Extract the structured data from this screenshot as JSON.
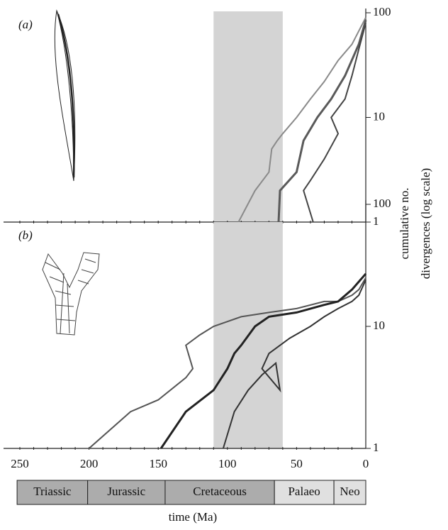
{
  "chart_data": [
    {
      "type": "line",
      "panel_label": "(a)",
      "log_y": true,
      "xlim": [
        250,
        0
      ],
      "ylim": [
        1,
        100
      ],
      "yticks": [
        1,
        10,
        100
      ],
      "xminorticks": [
        250,
        240,
        230,
        220,
        210,
        200,
        190,
        180,
        170,
        160,
        150,
        140,
        130,
        120,
        110,
        100,
        90,
        80,
        70,
        60,
        50,
        40,
        30,
        20,
        10
      ],
      "shade": [
        110,
        60
      ],
      "shade_color": "#d4d4d4",
      "ylabel": [
        "cumulative no.",
        "divergences (log scale)"
      ],
      "series": [
        {
          "color": "#8a8a8a",
          "x": [
            92,
            80,
            70,
            68,
            64,
            60,
            50,
            40,
            30,
            20,
            10,
            0
          ],
          "values": [
            1,
            2,
            3,
            5,
            6,
            7,
            10,
            15,
            22,
            35,
            50,
            90
          ]
        },
        {
          "color": "#5a5a5a",
          "x": [
            63,
            62,
            50,
            45,
            35,
            25,
            15,
            5,
            0
          ],
          "values": [
            1,
            2,
            3,
            6,
            10,
            15,
            25,
            50,
            85
          ]
        },
        {
          "color": "#444444",
          "x": [
            38,
            45,
            40,
            30,
            20,
            25,
            15,
            10,
            5,
            0
          ],
          "values": [
            1,
            2,
            2.5,
            4,
            7,
            10,
            15,
            25,
            45,
            80
          ]
        }
      ]
    },
    {
      "type": "line",
      "panel_label": "(b)",
      "log_y": true,
      "xlim": [
        250,
        0
      ],
      "ylim": [
        1,
        100
      ],
      "yticks": [
        1,
        10,
        100
      ],
      "xminorticks": [
        250,
        240,
        230,
        220,
        210,
        200,
        190,
        180,
        170,
        160,
        150,
        140,
        130,
        120,
        110,
        100,
        90,
        80,
        70,
        60,
        50,
        40,
        30,
        20,
        10
      ],
      "xticks": [
        250,
        200,
        150,
        100,
        50,
        0
      ],
      "xlabel": "time (Ma)",
      "shade": [
        110,
        60
      ],
      "shade_color": "#d4d4d4",
      "series": [
        {
          "color": "#555555",
          "x": [
            200,
            170,
            150,
            130,
            125,
            130,
            120,
            110,
            90,
            70,
            50,
            30,
            20,
            10,
            5,
            0
          ],
          "values": [
            1,
            2,
            2.5,
            3.8,
            4.5,
            7,
            8.5,
            10,
            12,
            13,
            14,
            16,
            16,
            18,
            20,
            25
          ]
        },
        {
          "color": "#222222",
          "x": [
            148,
            130,
            110,
            100,
            95,
            90,
            80,
            70,
            50,
            30,
            20,
            10,
            0
          ],
          "values": [
            1,
            2,
            3,
            4.5,
            6,
            7,
            10,
            12,
            13,
            15,
            16,
            20,
            27
          ]
        },
        {
          "color": "#333333",
          "x": [
            103,
            95,
            85,
            75,
            65,
            62,
            75,
            70,
            55,
            40,
            30,
            20,
            10,
            5,
            0
          ],
          "values": [
            1,
            2,
            3,
            4,
            5,
            3,
            4.5,
            6,
            8,
            10,
            12,
            14,
            16,
            18,
            24
          ]
        }
      ],
      "periods": [
        {
          "name": "Triassic",
          "start": 252,
          "end": 201,
          "color": "#acacac"
        },
        {
          "name": "Jurassic",
          "start": 201,
          "end": 145,
          "color": "#acacac"
        },
        {
          "name": "Cretaceous",
          "start": 145,
          "end": 66,
          "color": "#acacac"
        },
        {
          "name": "Palaeo",
          "start": 66,
          "end": 23,
          "color": "#e0e0e0"
        },
        {
          "name": "Neo",
          "start": 23,
          "end": 0,
          "color": "#e0e0e0"
        }
      ]
    }
  ]
}
